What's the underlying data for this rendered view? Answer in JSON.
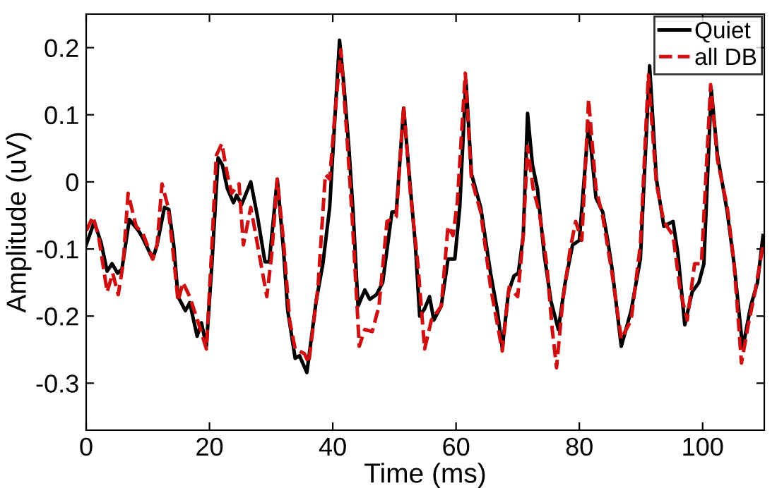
{
  "chart_data": {
    "type": "line",
    "xlabel": "Time (ms)",
    "ylabel": "Amplitude (uV)",
    "xlim": [
      0,
      110
    ],
    "ylim": [
      -0.37,
      0.25
    ],
    "xticks": [
      0,
      20,
      40,
      60,
      80,
      100
    ],
    "yticks": [
      -0.3,
      -0.2,
      -0.1,
      0,
      0.1,
      0.2
    ],
    "grid": false,
    "legend": "top right",
    "marker": "none",
    "series": [
      {
        "name": "Quiet",
        "color": "#000000",
        "line_style": "solid",
        "x": [
          0,
          1.3,
          2.4,
          3.4,
          4.2,
          5.1,
          5.8,
          7.0,
          8.5,
          9.2,
          10.8,
          11.5,
          12.7,
          13.4,
          14.2,
          14.9,
          16.1,
          16.8,
          18.0,
          18.7,
          19.5,
          20.4,
          21.4,
          22.1,
          22.9,
          23.9,
          24.4,
          25.2,
          26.7,
          27.8,
          29.0,
          29.7,
          31.0,
          32.0,
          32.7,
          33.9,
          34.6,
          35.8,
          36.5,
          37.3,
          38.4,
          39.5,
          40.3,
          41.1,
          41.8,
          42.6,
          43.3,
          44.1,
          45.2,
          46.0,
          47.1,
          48.1,
          49.6,
          50.3,
          51.5,
          52.6,
          53.4,
          54.1,
          54.9,
          55.7,
          56.4,
          57.6,
          58.7,
          59.8,
          60.6,
          61.6,
          62.5,
          64.0,
          65.6,
          66.7,
          67.5,
          68.5,
          69.4,
          70.1,
          70.9,
          71.6,
          72.4,
          73.2,
          74.3,
          75.4,
          76.6,
          77.7,
          78.9,
          80.0,
          81.5,
          82.7,
          83.8,
          84.6,
          85.3,
          86.8,
          88.4,
          89.9,
          91.4,
          92.5,
          93.7,
          95.2,
          96.0,
          97.1,
          98.3,
          99.4,
          100.2,
          101.4,
          102.4,
          104.0,
          105.1,
          106.5,
          107.8,
          108.9,
          109.8
        ],
        "values": [
          -0.094,
          -0.06,
          -0.09,
          -0.133,
          -0.122,
          -0.136,
          -0.13,
          -0.056,
          -0.073,
          -0.084,
          -0.115,
          -0.094,
          -0.038,
          -0.041,
          -0.094,
          -0.171,
          -0.192,
          -0.18,
          -0.23,
          -0.21,
          -0.245,
          -0.122,
          0.036,
          0.025,
          -0.01,
          -0.031,
          -0.02,
          -0.034,
          0.0,
          -0.052,
          -0.119,
          -0.119,
          0.004,
          -0.101,
          -0.192,
          -0.263,
          -0.259,
          -0.284,
          -0.235,
          -0.178,
          -0.122,
          -0.038,
          0.088,
          0.211,
          0.145,
          0.053,
          -0.045,
          -0.185,
          -0.161,
          -0.175,
          -0.168,
          -0.15,
          -0.045,
          -0.045,
          0.11,
          -0.01,
          -0.094,
          -0.2,
          -0.189,
          -0.171,
          -0.206,
          -0.185,
          -0.115,
          -0.115,
          -0.038,
          0.152,
          0.012,
          -0.038,
          -0.136,
          -0.192,
          -0.248,
          -0.164,
          -0.14,
          -0.136,
          -0.08,
          0.102,
          0.025,
          -0.01,
          -0.108,
          -0.178,
          -0.22,
          -0.15,
          -0.094,
          -0.087,
          0.088,
          -0.024,
          -0.045,
          -0.087,
          -0.129,
          -0.245,
          -0.192,
          -0.115,
          0.173,
          0.004,
          -0.066,
          -0.059,
          -0.108,
          -0.213,
          -0.164,
          -0.15,
          -0.122,
          0.138,
          0.04,
          -0.045,
          -0.122,
          -0.248,
          -0.185,
          -0.15,
          -0.08
        ]
      },
      {
        "name": "all DB",
        "color": "#d01010",
        "line_style": "dashed",
        "x": [
          0,
          1.1,
          2.0,
          3.4,
          4.3,
          5.2,
          6.0,
          6.8,
          8.1,
          9.2,
          10.8,
          11.5,
          12.3,
          13.3,
          14.3,
          14.9,
          15.7,
          16.8,
          18.3,
          19.5,
          20.4,
          21.1,
          22.0,
          22.9,
          23.6,
          24.8,
          25.5,
          26.7,
          27.8,
          29.3,
          30.1,
          31.0,
          32.0,
          33.0,
          33.9,
          35.4,
          36.1,
          37.6,
          38.8,
          39.5,
          40.3,
          41.3,
          42.2,
          43.1,
          44.3,
          45.2,
          46.4,
          47.5,
          48.8,
          50.3,
          51.5,
          52.6,
          53.8,
          54.9,
          56.0,
          57.6,
          58.7,
          59.5,
          60.2,
          61.5,
          62.5,
          64.0,
          65.6,
          67.5,
          68.6,
          70.0,
          70.9,
          71.6,
          72.5,
          73.5,
          74.7,
          75.6,
          76.3,
          77.3,
          78.5,
          79.4,
          80.4,
          81.5,
          82.7,
          83.8,
          85.3,
          86.8,
          88.4,
          89.9,
          91.2,
          92.5,
          93.7,
          95.2,
          96.4,
          97.5,
          98.7,
          99.8,
          101.3,
          102.4,
          104.0,
          105.1,
          106.3,
          107.4,
          108.5,
          109.8
        ],
        "values": [
          -0.073,
          -0.052,
          -0.08,
          -0.164,
          -0.136,
          -0.168,
          -0.122,
          -0.017,
          -0.066,
          -0.077,
          -0.115,
          -0.094,
          -0.003,
          -0.038,
          -0.122,
          -0.178,
          -0.15,
          -0.171,
          -0.213,
          -0.249,
          -0.094,
          0.039,
          0.057,
          0.011,
          -0.017,
          -0.003,
          -0.094,
          -0.038,
          -0.094,
          -0.171,
          -0.108,
          0.004,
          -0.087,
          -0.206,
          -0.249,
          -0.256,
          -0.27,
          -0.157,
          0.011,
          0.004,
          0.095,
          0.197,
          0.081,
          -0.045,
          -0.245,
          -0.22,
          -0.223,
          -0.185,
          -0.059,
          -0.052,
          0.113,
          -0.017,
          -0.122,
          -0.249,
          -0.206,
          -0.185,
          -0.066,
          -0.08,
          -0.031,
          0.162,
          0.004,
          -0.045,
          -0.157,
          -0.252,
          -0.157,
          -0.171,
          -0.08,
          0.053,
          -0.01,
          -0.045,
          -0.122,
          -0.22,
          -0.277,
          -0.178,
          -0.101,
          -0.059,
          -0.087,
          0.123,
          -0.01,
          -0.052,
          -0.136,
          -0.234,
          -0.206,
          -0.094,
          0.159,
          -0.003,
          -0.059,
          -0.08,
          -0.164,
          -0.206,
          -0.122,
          -0.122,
          0.145,
          0.033,
          -0.038,
          -0.122,
          -0.27,
          -0.213,
          -0.164,
          -0.094
        ]
      }
    ]
  }
}
